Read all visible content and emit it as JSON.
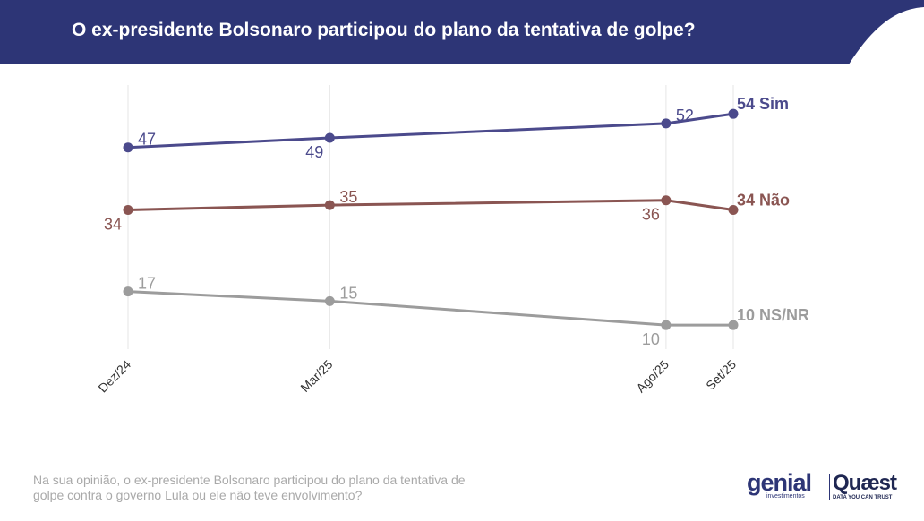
{
  "header": {
    "title": "O ex-presidente Bolsonaro participou do plano da tentativa de golpe?"
  },
  "footnote": "Na sua opinião, o ex-presidente Bolsonaro participou do plano da tentativa de golpe contra o governo Lula ou ele não teve envolvimento?",
  "logos": {
    "genial": "genial",
    "genial_sub": "investimentos",
    "quaest": "Quæst",
    "quaest_sub": "DATA YOU CAN TRUST"
  },
  "colors": {
    "header_bg": "#2d3576",
    "sim": "#4b4a8c",
    "nao": "#8a5552",
    "nsnr": "#9c9c9c",
    "gridline": "#e6e6e6"
  },
  "chart_data": {
    "type": "line",
    "x": [
      "Dez/24",
      "Mar/25",
      "Ago/25",
      "Set/25"
    ],
    "x_month_index": [
      0,
      3,
      8,
      9
    ],
    "ylim": [
      5,
      60
    ],
    "grid": "vertical",
    "series": [
      {
        "name": "Sim",
        "end_label": "54 Sim",
        "color": "#4b4a8c",
        "values": [
          47,
          49,
          52,
          54
        ],
        "label_pos": [
          "above-right",
          "below-left",
          "above-right",
          null
        ]
      },
      {
        "name": "Não",
        "end_label": "34 Não",
        "color": "#8a5552",
        "values": [
          34,
          35,
          36,
          34
        ],
        "label_pos": [
          "below-left",
          "above-right",
          "below-left",
          null
        ]
      },
      {
        "name": "NS/NR",
        "end_label": "10 NS/NR",
        "color": "#9c9c9c",
        "values": [
          17,
          15,
          10,
          10
        ],
        "label_pos": [
          "above-right",
          "above-right",
          "below-left",
          null
        ]
      }
    ]
  }
}
